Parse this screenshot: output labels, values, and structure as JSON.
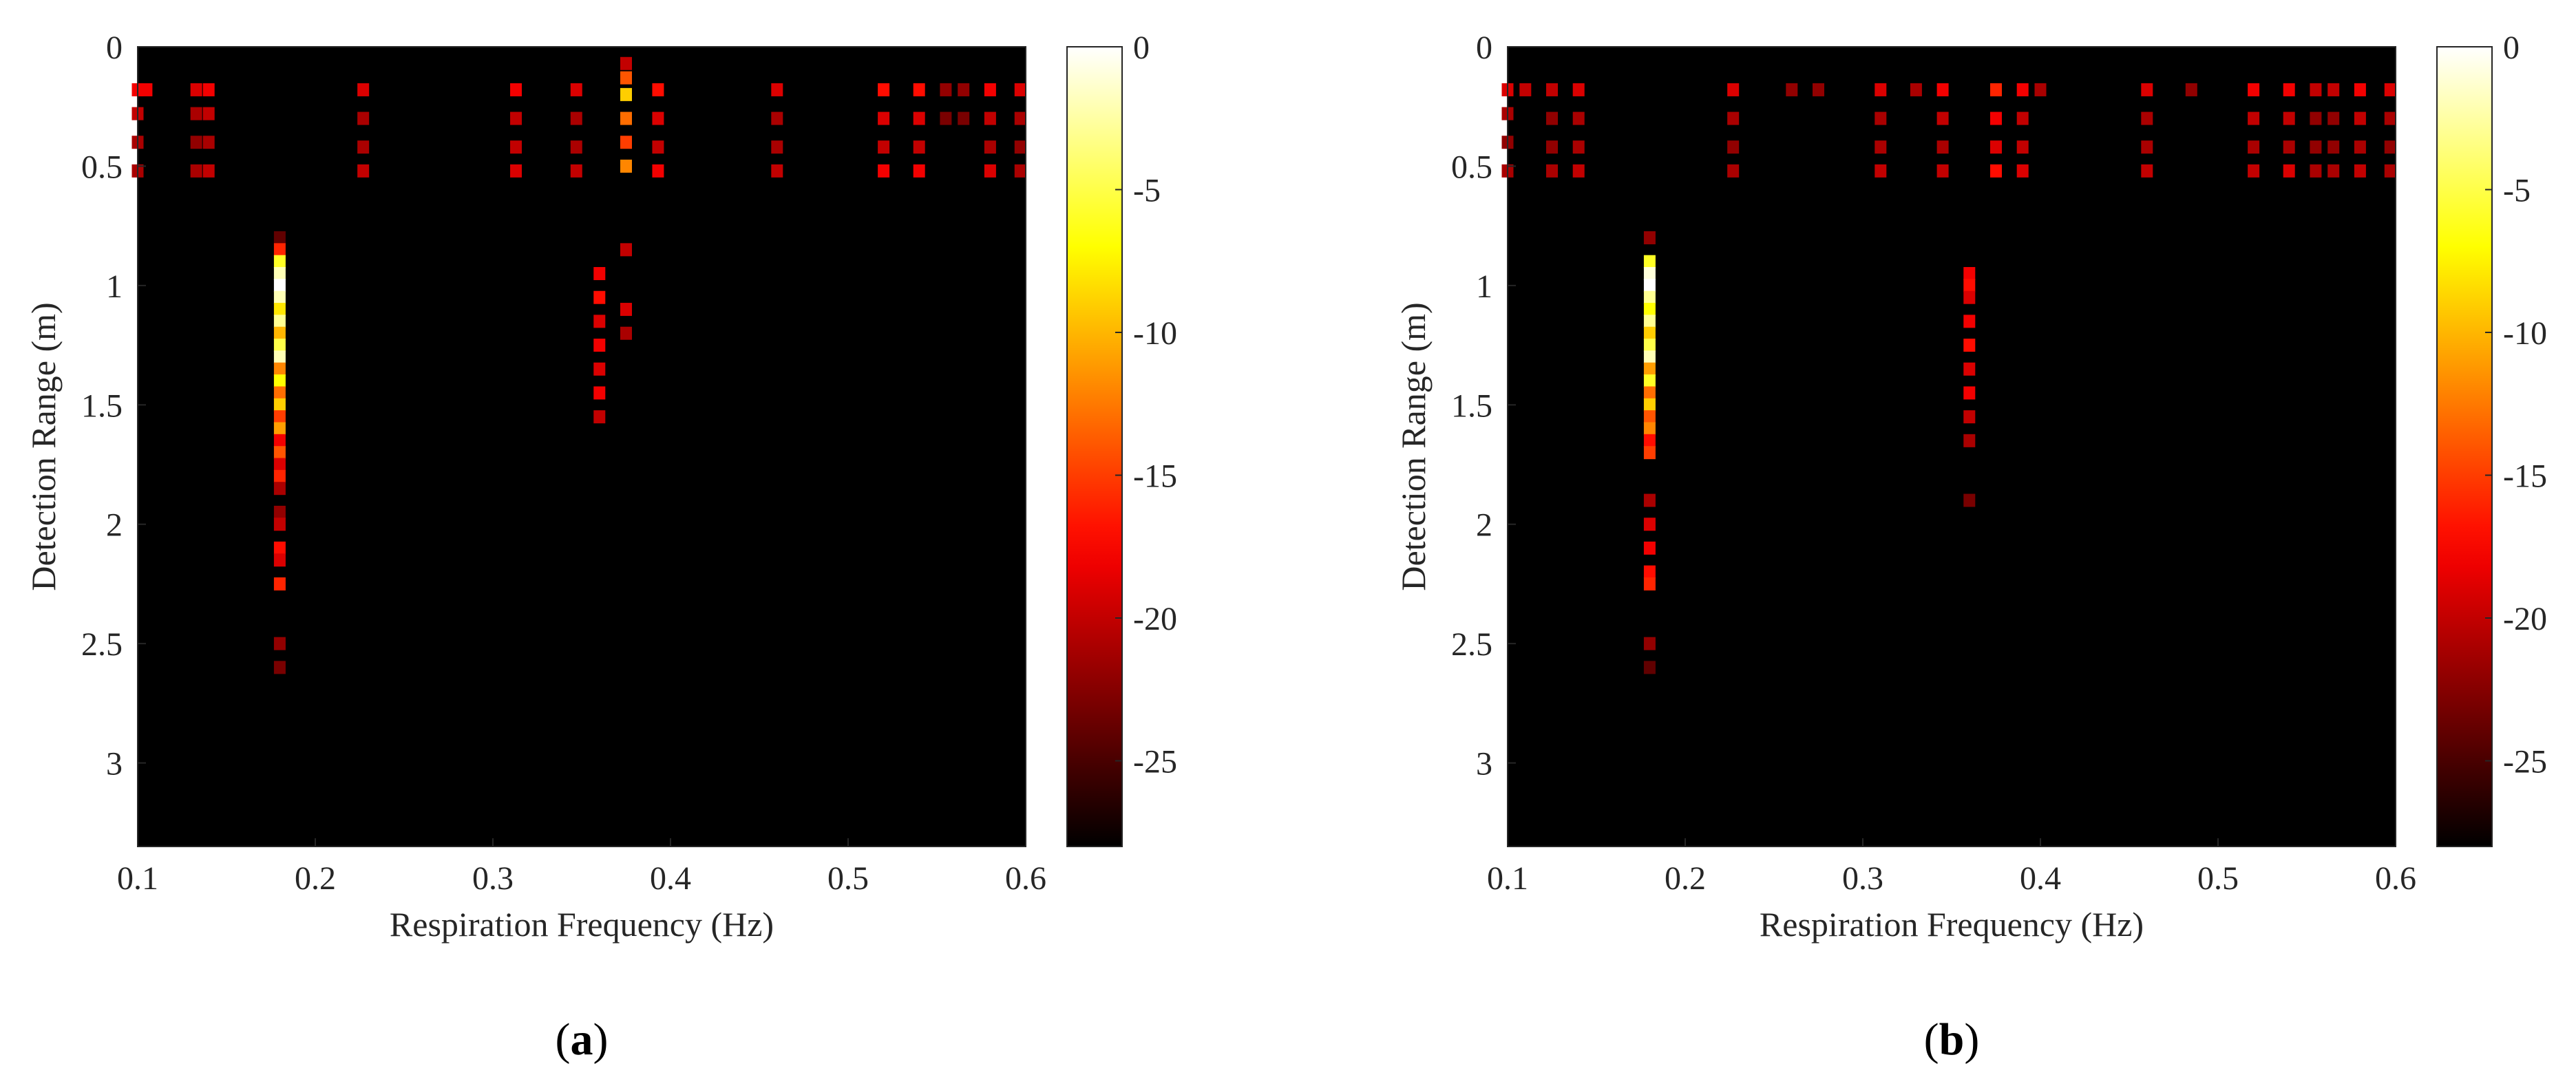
{
  "chart_data": [
    {
      "type": "heatmap",
      "panel_label": "(a)",
      "panel_label_parts": [
        "(",
        "a",
        ")"
      ],
      "xlabel": "Respiration Frequency (Hz)",
      "ylabel": "Detection Range (m)",
      "xlim": [
        0.1,
        0.6
      ],
      "ylim": [
        0,
        3.35
      ],
      "y_reversed": true,
      "xticks": [
        0.1,
        0.2,
        0.3,
        0.4,
        0.5,
        0.6
      ],
      "xtick_labels": [
        "0.1",
        "0.2",
        "0.3",
        "0.4",
        "0.5",
        "0.6"
      ],
      "yticks": [
        0,
        0.5,
        1,
        1.5,
        2,
        2.5,
        3
      ],
      "ytick_labels": [
        "0",
        "0.5",
        "1",
        "1.5",
        "2",
        "2.5",
        "3"
      ],
      "colorbar": {
        "colormap": "hot",
        "range": [
          -28,
          0
        ],
        "ticks": [
          0,
          -5,
          -10,
          -15,
          -20,
          -25
        ],
        "tick_labels": [
          "0",
          "-5",
          "-10",
          "-15",
          "-20",
          "-25"
        ]
      },
      "background_value": -28,
      "cells": [
        {
          "x": 0.18,
          "y": [
            0.8,
            0.85,
            0.9,
            0.95,
            1.0,
            1.05,
            1.1,
            1.15,
            1.2,
            1.25,
            1.3,
            1.35,
            1.4,
            1.45,
            1.5,
            1.55,
            1.6,
            1.65,
            1.7,
            1.75,
            1.8,
            1.85,
            1.95,
            2.0,
            2.1,
            2.15,
            2.25,
            2.5,
            2.6
          ],
          "v": [
            -24,
            -16,
            -6,
            -2,
            0,
            -2,
            -8,
            -3,
            -10,
            -5,
            -2,
            -12,
            -7,
            -13,
            -9,
            -15,
            -11,
            -18,
            -14,
            -19,
            -16,
            -21,
            -22,
            -20,
            -17,
            -19,
            -16,
            -22,
            -23
          ]
        },
        {
          "x": 0.36,
          "y": [
            0.95,
            1.05,
            1.15,
            1.25,
            1.35,
            1.45,
            1.55
          ],
          "v": [
            -18,
            -17,
            -19,
            -18,
            -19,
            -18,
            -20
          ]
        },
        {
          "x": 0.375,
          "y": [
            0.07,
            0.13,
            0.2,
            0.3,
            0.4,
            0.5,
            0.85,
            1.1,
            1.2
          ],
          "v": [
            -20,
            -14,
            -9,
            -13,
            -15,
            -12,
            -20,
            -19,
            -21
          ]
        },
        {
          "x": 0.105,
          "y": [
            0.18
          ],
          "v": [
            -18
          ]
        },
        {
          "x": 0.1,
          "y": [
            0.18,
            0.28,
            0.4,
            0.52
          ],
          "v": [
            -18,
            -20,
            -21,
            -21
          ]
        },
        {
          "x": 0.133,
          "y": [
            0.18,
            0.28,
            0.4,
            0.52
          ],
          "v": [
            -19,
            -21,
            -22,
            -21
          ]
        },
        {
          "x": 0.14,
          "y": [
            0.18,
            0.28,
            0.4,
            0.52
          ],
          "v": [
            -18,
            -20,
            -21,
            -20
          ]
        },
        {
          "x": 0.227,
          "y": [
            0.18,
            0.3,
            0.42,
            0.52
          ],
          "v": [
            -19,
            -21,
            -21,
            -20
          ]
        },
        {
          "x": 0.313,
          "y": [
            0.18,
            0.3,
            0.42,
            0.52
          ],
          "v": [
            -18,
            -20,
            -20,
            -19
          ]
        },
        {
          "x": 0.347,
          "y": [
            0.18,
            0.3,
            0.42,
            0.52
          ],
          "v": [
            -19,
            -21,
            -21,
            -20
          ]
        },
        {
          "x": 0.393,
          "y": [
            0.18,
            0.3,
            0.42,
            0.52
          ],
          "v": [
            -17,
            -19,
            -20,
            -18
          ]
        },
        {
          "x": 0.46,
          "y": [
            0.18,
            0.3,
            0.42,
            0.52
          ],
          "v": [
            -19,
            -21,
            -21,
            -20
          ]
        },
        {
          "x": 0.52,
          "y": [
            0.18,
            0.3,
            0.42,
            0.52
          ],
          "v": [
            -17,
            -19,
            -20,
            -18
          ]
        },
        {
          "x": 0.54,
          "y": [
            0.18,
            0.3,
            0.42,
            0.52
          ],
          "v": [
            -17,
            -19,
            -20,
            -18
          ]
        },
        {
          "x": 0.555,
          "y": [
            0.18,
            0.3
          ],
          "v": [
            -22,
            -23
          ]
        },
        {
          "x": 0.565,
          "y": [
            0.18,
            0.3
          ],
          "v": [
            -22,
            -23
          ]
        },
        {
          "x": 0.58,
          "y": [
            0.18,
            0.3,
            0.42,
            0.52
          ],
          "v": [
            -18,
            -20,
            -21,
            -19
          ]
        },
        {
          "x": 0.597,
          "y": [
            0.18,
            0.3,
            0.42,
            0.52
          ],
          "v": [
            -19,
            -21,
            -22,
            -21
          ]
        }
      ]
    },
    {
      "type": "heatmap",
      "panel_label": "(b)",
      "panel_label_parts": [
        "(",
        "b",
        ")"
      ],
      "xlabel": "Respiration Frequency (Hz)",
      "ylabel": "Detection Range (m)",
      "xlim": [
        0.1,
        0.6
      ],
      "ylim": [
        0,
        3.35
      ],
      "y_reversed": true,
      "xticks": [
        0.1,
        0.2,
        0.3,
        0.4,
        0.5,
        0.6
      ],
      "xtick_labels": [
        "0.1",
        "0.2",
        "0.3",
        "0.4",
        "0.5",
        "0.6"
      ],
      "yticks": [
        0,
        0.5,
        1,
        1.5,
        2,
        2.5,
        3
      ],
      "ytick_labels": [
        "0",
        "0.5",
        "1",
        "1.5",
        "2",
        "2.5",
        "3"
      ],
      "colorbar": {
        "colormap": "hot",
        "range": [
          -28,
          0
        ],
        "ticks": [
          0,
          -5,
          -10,
          -15,
          -20,
          -25
        ],
        "tick_labels": [
          "0",
          "-5",
          "-10",
          "-15",
          "-20",
          "-25"
        ]
      },
      "background_value": -28,
      "cells": [
        {
          "x": 0.18,
          "y": [
            0.8,
            0.9,
            0.95,
            1.0,
            1.05,
            1.1,
            1.15,
            1.2,
            1.25,
            1.3,
            1.35,
            1.4,
            1.45,
            1.5,
            1.55,
            1.6,
            1.65,
            1.7,
            1.9,
            2.0,
            2.1,
            2.2,
            2.25,
            2.5,
            2.6
          ],
          "v": [
            -22,
            -6,
            -1,
            0,
            -3,
            -7,
            -3,
            -9,
            -5,
            -2,
            -11,
            -6,
            -13,
            -9,
            -14,
            -12,
            -17,
            -15,
            -21,
            -19,
            -18,
            -17,
            -16,
            -22,
            -24
          ]
        },
        {
          "x": 0.36,
          "y": [
            0.95,
            1.0,
            1.05,
            1.15,
            1.25,
            1.35,
            1.45,
            1.55,
            1.65,
            1.9
          ],
          "v": [
            -18,
            -17,
            -19,
            -18,
            -17,
            -19,
            -18,
            -20,
            -21,
            -23
          ]
        },
        {
          "x": 0.375,
          "y": [
            0.18,
            0.3,
            0.42,
            0.52
          ],
          "v": [
            -16,
            -18,
            -19,
            -17
          ]
        },
        {
          "x": 0.1,
          "y": [
            0.18,
            0.28,
            0.4,
            0.52
          ],
          "v": [
            -19,
            -21,
            -22,
            -21
          ]
        },
        {
          "x": 0.11,
          "y": [
            0.18
          ],
          "v": [
            -20
          ]
        },
        {
          "x": 0.125,
          "y": [
            0.18,
            0.3,
            0.42,
            0.52
          ],
          "v": [
            -20,
            -22,
            -22,
            -21
          ]
        },
        {
          "x": 0.14,
          "y": [
            0.18,
            0.3,
            0.42,
            0.52
          ],
          "v": [
            -19,
            -21,
            -21,
            -20
          ]
        },
        {
          "x": 0.227,
          "y": [
            0.18,
            0.3,
            0.42,
            0.52
          ],
          "v": [
            -19,
            -21,
            -22,
            -21
          ]
        },
        {
          "x": 0.26,
          "y": [
            0.18
          ],
          "v": [
            -22
          ]
        },
        {
          "x": 0.275,
          "y": [
            0.18
          ],
          "v": [
            -22
          ]
        },
        {
          "x": 0.31,
          "y": [
            0.18,
            0.3,
            0.42,
            0.52
          ],
          "v": [
            -19,
            -21,
            -21,
            -20
          ]
        },
        {
          "x": 0.33,
          "y": [
            0.18
          ],
          "v": [
            -21
          ]
        },
        {
          "x": 0.345,
          "y": [
            0.18,
            0.3,
            0.42,
            0.52
          ],
          "v": [
            -18,
            -20,
            -21,
            -20
          ]
        },
        {
          "x": 0.39,
          "y": [
            0.18,
            0.3,
            0.42,
            0.52
          ],
          "v": [
            -18,
            -20,
            -20,
            -19
          ]
        },
        {
          "x": 0.4,
          "y": [
            0.18
          ],
          "v": [
            -21
          ]
        },
        {
          "x": 0.46,
          "y": [
            0.18,
            0.3,
            0.42,
            0.52
          ],
          "v": [
            -19,
            -21,
            -21,
            -20
          ]
        },
        {
          "x": 0.485,
          "y": [
            0.18
          ],
          "v": [
            -22
          ]
        },
        {
          "x": 0.52,
          "y": [
            0.18,
            0.3,
            0.42,
            0.52
          ],
          "v": [
            -18,
            -20,
            -21,
            -20
          ]
        },
        {
          "x": 0.54,
          "y": [
            0.18,
            0.3,
            0.42,
            0.52
          ],
          "v": [
            -18,
            -20,
            -21,
            -19
          ]
        },
        {
          "x": 0.555,
          "y": [
            0.18,
            0.3,
            0.42,
            0.52
          ],
          "v": [
            -20,
            -22,
            -22,
            -21
          ]
        },
        {
          "x": 0.565,
          "y": [
            0.18,
            0.3,
            0.42,
            0.52
          ],
          "v": [
            -20,
            -22,
            -22,
            -21
          ]
        },
        {
          "x": 0.58,
          "y": [
            0.18,
            0.3,
            0.42,
            0.52
          ],
          "v": [
            -18,
            -20,
            -21,
            -20
          ]
        },
        {
          "x": 0.597,
          "y": [
            0.18,
            0.3,
            0.42,
            0.52
          ],
          "v": [
            -19,
            -21,
            -22,
            -21
          ]
        }
      ]
    }
  ]
}
